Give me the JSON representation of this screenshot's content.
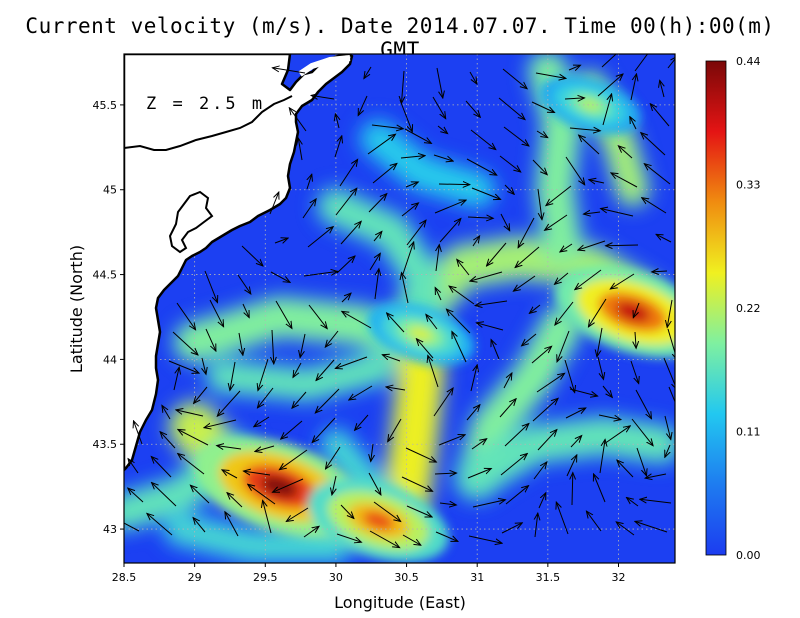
{
  "title": "Current velocity (m/s). Date 2014.07.07. Time 00(h):00(m) GMT",
  "chart_data": {
    "type": "heatmap",
    "subtype": "vector-field-map",
    "title": "Current velocity (m/s). Date 2014.07.07. Time 00(h):00(m) GMT",
    "xlabel": "Longitude (East)",
    "ylabel": "Latitude (North)",
    "annotation": "Z = 2.5 m",
    "xlim": [
      28.5,
      32.4
    ],
    "ylim": [
      42.8,
      45.8
    ],
    "x_ticks": [
      28.5,
      29,
      29.5,
      30,
      30.5,
      31,
      31.5,
      32
    ],
    "x_tick_labels": [
      "28.5",
      "29",
      "29.5",
      "30",
      "30.5",
      "31",
      "31.5",
      "32"
    ],
    "y_ticks": [
      43,
      43.5,
      44,
      44.5,
      45,
      45.5
    ],
    "y_tick_labels": [
      "43",
      "43.5",
      "44",
      "44.5",
      "45",
      "45.5"
    ],
    "grid": true,
    "colorbar": {
      "min": 0.0,
      "max": 0.44,
      "ticks": [
        0.0,
        0.11,
        0.22,
        0.33,
        0.44
      ],
      "tick_labels": [
        "0.00",
        "0.11",
        "0.22",
        "0.33",
        "0.44"
      ],
      "colormap": [
        "#1c3cf0",
        "#1e7cf0",
        "#22c8f0",
        "#7ff0a0",
        "#f0f020",
        "#f08c10",
        "#e41414",
        "#7a0808"
      ]
    },
    "speed_maxima": [
      {
        "lon": 29.6,
        "lat": 43.25,
        "speed": 0.44
      },
      {
        "lon": 30.3,
        "lat": 43.05,
        "speed": 0.35
      },
      {
        "lon": 32.1,
        "lat": 44.28,
        "speed": 0.4
      },
      {
        "lon": 30.6,
        "lat": 44.15,
        "speed": 0.24
      },
      {
        "lon": 31.8,
        "lat": 45.5,
        "speed": 0.22
      }
    ]
  },
  "colors": {
    "land": "#ffffff",
    "coast": "#000000",
    "grid": "#b4b4b4"
  }
}
